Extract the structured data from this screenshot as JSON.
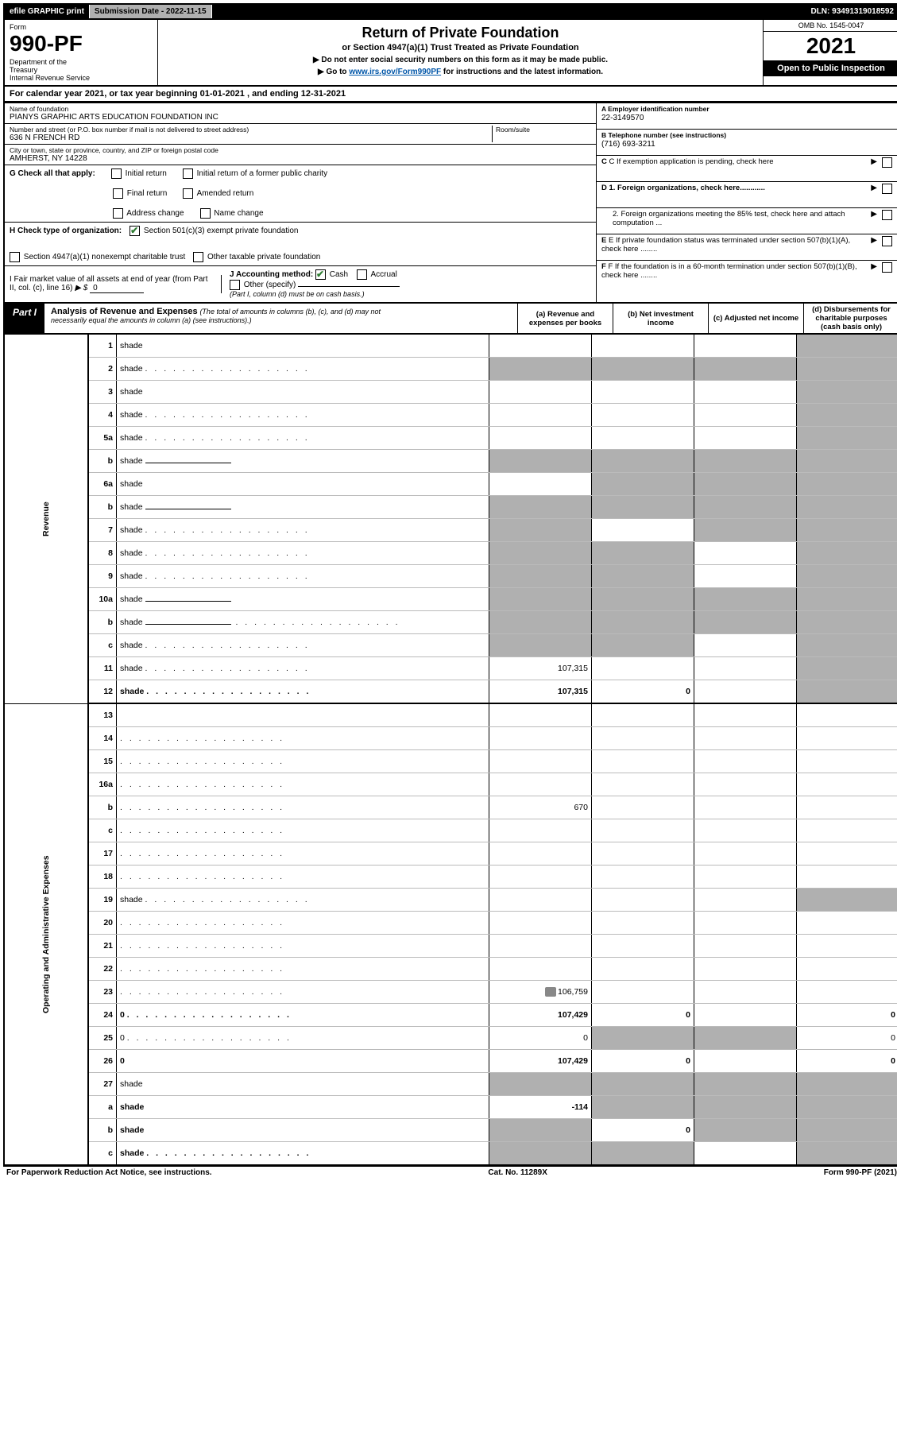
{
  "topbar": {
    "efile": "efile GRAPHIC print",
    "submission_label": "Submission Date - 2022-11-15",
    "dln": "DLN: 93491319018592"
  },
  "header": {
    "form_word": "Form",
    "form_number": "990-PF",
    "dept": "Department of the Treasury\nInternal Revenue Service",
    "title": "Return of Private Foundation",
    "subtitle": "or Section 4947(a)(1) Trust Treated as Private Foundation",
    "note1": "▶ Do not enter social security numbers on this form as it may be made public.",
    "note2": "▶ Go to www.irs.gov/Form990PF for instructions and the latest information.",
    "link_text": "www.irs.gov/Form990PF",
    "omb": "OMB No. 1545-0047",
    "year": "2021",
    "open": "Open to Public Inspection"
  },
  "cal_year": "For calendar year 2021, or tax year beginning 01-01-2021              , and ending 12-31-2021",
  "foundation": {
    "name_label": "Name of foundation",
    "name": "PIANYS GRAPHIC ARTS EDUCATION FOUNDATION INC",
    "addr_label": "Number and street (or P.O. box number if mail is not delivered to street address)",
    "addr": "636 N FRENCH RD",
    "room_label": "Room/suite",
    "city_label": "City or town, state or province, country, and ZIP or foreign postal code",
    "city": "AMHERST, NY  14228"
  },
  "right_info": {
    "a_label": "A Employer identification number",
    "a_value": "22-3149570",
    "b_label": "B Telephone number (see instructions)",
    "b_value": "(716) 693-3211",
    "c_label": "C If exemption application is pending, check here",
    "d1_label": "D 1. Foreign organizations, check here............",
    "d2_label": "2. Foreign organizations meeting the 85% test, check here and attach computation ...",
    "e_label": "E  If private foundation status was terminated under section 507(b)(1)(A), check here ........",
    "f_label": "F  If the foundation is in a 60-month termination under section 507(b)(1)(B), check here ........"
  },
  "g_row": {
    "label": "G Check all that apply:",
    "opts": [
      "Initial return",
      "Final return",
      "Address change",
      "Initial return of a former public charity",
      "Amended return",
      "Name change"
    ]
  },
  "h_row": {
    "label": "H Check type of organization:",
    "opt1": "Section 501(c)(3) exempt private foundation",
    "opt2": "Section 4947(a)(1) nonexempt charitable trust",
    "opt3": "Other taxable private foundation"
  },
  "i_row": {
    "label": "I Fair market value of all assets at end of year (from Part II, col. (c), line 16)",
    "value_prefix": "▶ $",
    "value": "0"
  },
  "j_row": {
    "label": "J Accounting method:",
    "cash": "Cash",
    "accrual": "Accrual",
    "other": "Other (specify)",
    "note": "(Part I, column (d) must be on cash basis.)"
  },
  "part1": {
    "label": "Part I",
    "title": "Analysis of Revenue and Expenses",
    "title_note": "(The total of amounts in columns (b), (c), and (d) may not necessarily equal the amounts in column (a) (see instructions).)",
    "col_a": "(a)   Revenue and expenses per books",
    "col_b": "(b)   Net investment income",
    "col_c": "(c)   Adjusted net income",
    "col_d": "(d)   Disbursements for charitable purposes (cash basis only)"
  },
  "side_labels": {
    "revenue": "Revenue",
    "expenses": "Operating and Administrative Expenses"
  },
  "rows": [
    {
      "n": "1",
      "d": "shade",
      "a": "",
      "b": "",
      "c": ""
    },
    {
      "n": "2",
      "d": "shade",
      "a": "shade",
      "b": "shade",
      "c": "shade",
      "checked": true,
      "dots": true
    },
    {
      "n": "3",
      "d": "shade",
      "a": "",
      "b": "",
      "c": ""
    },
    {
      "n": "4",
      "d": "shade",
      "a": "",
      "b": "",
      "c": "",
      "dots": true
    },
    {
      "n": "5a",
      "d": "shade",
      "a": "",
      "b": "",
      "c": "",
      "dots": true
    },
    {
      "n": "b",
      "d": "shade",
      "a": "shade",
      "b": "shade",
      "c": "shade",
      "uline": true
    },
    {
      "n": "6a",
      "d": "shade",
      "a": "",
      "b": "shade",
      "c": "shade"
    },
    {
      "n": "b",
      "d": "shade",
      "a": "shade",
      "b": "shade",
      "c": "shade",
      "uline": true
    },
    {
      "n": "7",
      "d": "shade",
      "a": "shade",
      "b": "",
      "c": "shade",
      "dots": true
    },
    {
      "n": "8",
      "d": "shade",
      "a": "shade",
      "b": "shade",
      "c": "",
      "dots": true
    },
    {
      "n": "9",
      "d": "shade",
      "a": "shade",
      "b": "shade",
      "c": "",
      "dots": true
    },
    {
      "n": "10a",
      "d": "shade",
      "a": "shade",
      "b": "shade",
      "c": "shade",
      "uline": true
    },
    {
      "n": "b",
      "d": "shade",
      "a": "shade",
      "b": "shade",
      "c": "shade",
      "uline": true,
      "dots": true
    },
    {
      "n": "c",
      "d": "shade",
      "a": "shade",
      "b": "shade",
      "c": "",
      "dots": true
    },
    {
      "n": "11",
      "d": "shade",
      "a": "107,315",
      "b": "",
      "c": "",
      "dots": true
    },
    {
      "n": "12",
      "d": "shade",
      "a": "107,315",
      "b": "0",
      "c": "",
      "bold": true,
      "dots": true
    }
  ],
  "exp_rows": [
    {
      "n": "13",
      "d": "",
      "a": "",
      "b": "",
      "c": ""
    },
    {
      "n": "14",
      "d": "",
      "a": "",
      "b": "",
      "c": "",
      "dots": true
    },
    {
      "n": "15",
      "d": "",
      "a": "",
      "b": "",
      "c": "",
      "dots": true
    },
    {
      "n": "16a",
      "d": "",
      "a": "",
      "b": "",
      "c": "",
      "dots": true
    },
    {
      "n": "b",
      "d": "",
      "a": "670",
      "b": "",
      "c": "",
      "dots": true
    },
    {
      "n": "c",
      "d": "",
      "a": "",
      "b": "",
      "c": "",
      "dots": true
    },
    {
      "n": "17",
      "d": "",
      "a": "",
      "b": "",
      "c": "",
      "dots": true
    },
    {
      "n": "18",
      "d": "",
      "a": "",
      "b": "",
      "c": "",
      "dots": true
    },
    {
      "n": "19",
      "d": "shade",
      "a": "",
      "b": "",
      "c": "",
      "dots": true
    },
    {
      "n": "20",
      "d": "",
      "a": "",
      "b": "",
      "c": "",
      "dots": true
    },
    {
      "n": "21",
      "d": "",
      "a": "",
      "b": "",
      "c": "",
      "dots": true
    },
    {
      "n": "22",
      "d": "",
      "a": "",
      "b": "",
      "c": "",
      "dots": true
    },
    {
      "n": "23",
      "d": "",
      "a": "106,759",
      "b": "",
      "c": "",
      "dots": true,
      "icon": true
    },
    {
      "n": "24",
      "d": "0",
      "a": "107,429",
      "b": "0",
      "c": "",
      "bold": true,
      "dots": true
    },
    {
      "n": "25",
      "d": "0",
      "a": "0",
      "b": "shade",
      "c": "shade",
      "dots": true
    },
    {
      "n": "26",
      "d": "0",
      "a": "107,429",
      "b": "0",
      "c": "",
      "bold": true
    },
    {
      "n": "27",
      "d": "shade",
      "a": "shade",
      "b": "shade",
      "c": "shade"
    },
    {
      "n": "a",
      "d": "shade",
      "a": "-114",
      "b": "shade",
      "c": "shade",
      "bold": true
    },
    {
      "n": "b",
      "d": "shade",
      "a": "shade",
      "b": "0",
      "c": "shade",
      "bold": true
    },
    {
      "n": "c",
      "d": "shade",
      "a": "shade",
      "b": "shade",
      "c": "",
      "bold": true,
      "dots": true
    }
  ],
  "footer": {
    "left": "For Paperwork Reduction Act Notice, see instructions.",
    "center": "Cat. No. 11289X",
    "right": "Form 990-PF (2021)"
  },
  "colors": {
    "shade": "#b0b0b0",
    "link": "#0056a8",
    "check_green": "#2e7d32"
  }
}
